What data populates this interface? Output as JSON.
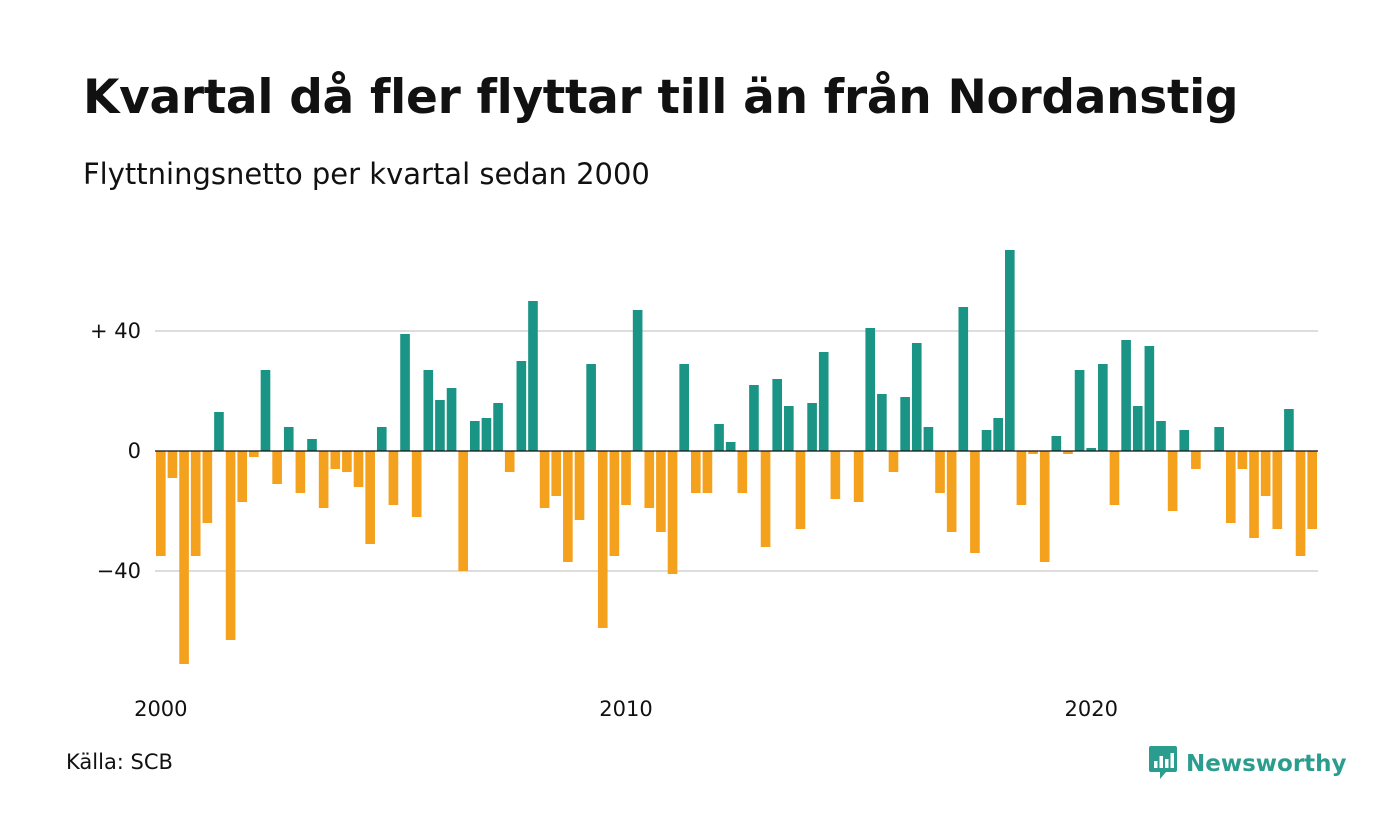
{
  "title": "Kvartal då fler flyttar till än från Nordanstig",
  "subtitle": "Flyttningsnetto per kvartal sedan 2000",
  "source": "Källa: SCB",
  "brand": "Newsworthy",
  "colors": {
    "positive": "#1a9484",
    "negative": "#f4a11e",
    "grid": "#dddddd",
    "brand": "#2a9d8f"
  },
  "chart_data": {
    "type": "bar",
    "x_start": "2000 Q1",
    "x_end": "2024 Q4",
    "ylim": [
      -72,
      68
    ],
    "yticks": [
      {
        "value": 40,
        "label": "+ 40"
      },
      {
        "value": 0,
        "label": "0"
      },
      {
        "value": -40,
        "label": "−40"
      }
    ],
    "xticks": [
      {
        "index": 0,
        "label": "2000"
      },
      {
        "index": 40,
        "label": "2010"
      },
      {
        "index": 80,
        "label": "2020"
      }
    ],
    "grid": true,
    "values": [
      -35,
      -9,
      -71,
      -35,
      -24,
      13,
      -63,
      -17,
      -2,
      27,
      -11,
      8,
      -14,
      4,
      -19,
      -6,
      -7,
      -12,
      -31,
      8,
      -18,
      39,
      -22,
      27,
      17,
      21,
      -40,
      10,
      11,
      16,
      -7,
      30,
      50,
      -19,
      -15,
      -37,
      -23,
      29,
      -59,
      -35,
      -18,
      47,
      -19,
      -27,
      -41,
      29,
      -14,
      -14,
      9,
      3,
      -14,
      22,
      -32,
      24,
      15,
      -26,
      16,
      33,
      -16,
      0,
      -17,
      41,
      19,
      -7,
      18,
      36,
      8,
      -14,
      -27,
      48,
      -34,
      7,
      11,
      67,
      -18,
      -1,
      -37,
      5,
      -1,
      27,
      1,
      29,
      -18,
      37,
      15,
      35,
      10,
      -20,
      7,
      -6,
      0,
      8,
      -24,
      -6,
      -29,
      -15,
      -26,
      14,
      -35,
      -26
    ]
  }
}
